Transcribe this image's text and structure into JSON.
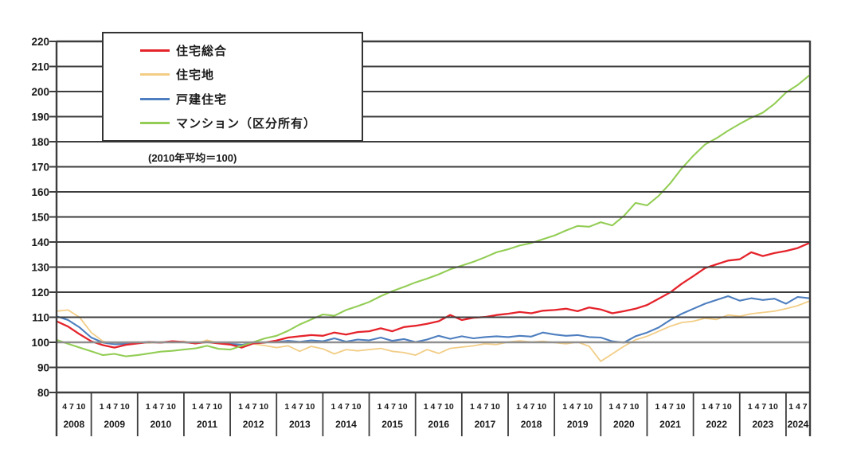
{
  "note": "(2010年平均＝100)",
  "legend": {
    "items": [
      {
        "id": "jutaku-sogo",
        "label": "住宅総合",
        "color": "#e5232b"
      },
      {
        "id": "jutakuchi",
        "label": "住宅地",
        "color": "#f2cd86"
      },
      {
        "id": "kodate",
        "label": "戸建住宅",
        "color": "#4d7ebf"
      },
      {
        "id": "mansion",
        "label": "マンション（区分所有）",
        "color": "#93cd55"
      }
    ]
  },
  "y_axis": {
    "min": 80,
    "max": 220,
    "step": 10,
    "tick_labels": [
      "220",
      "210",
      "200",
      "190",
      "180",
      "170",
      "160",
      "150",
      "140",
      "130",
      "120",
      "110",
      "100",
      "90",
      "80"
    ]
  },
  "x_axis": {
    "years": [
      {
        "year": "2008",
        "months": "4 7 10"
      },
      {
        "year": "2009",
        "months": "1 4 7 10"
      },
      {
        "year": "2010",
        "months": "1 4 7 10"
      },
      {
        "year": "2011",
        "months": "1 4 7 10"
      },
      {
        "year": "2012",
        "months": "1 4 7 10"
      },
      {
        "year": "2013",
        "months": "1 4 7 10"
      },
      {
        "year": "2014",
        "months": "1 4 7 10"
      },
      {
        "year": "2015",
        "months": "1 4 7 10"
      },
      {
        "year": "2016",
        "months": "1 4 7 10"
      },
      {
        "year": "2017",
        "months": "1 4 7 10"
      },
      {
        "year": "2018",
        "months": "1 4 7 10"
      },
      {
        "year": "2019",
        "months": "1 4 7 10"
      },
      {
        "year": "2020",
        "months": "1 4 7 10"
      },
      {
        "year": "2021",
        "months": "1 4 7 10"
      },
      {
        "year": "2022",
        "months": "1 4 7 10"
      },
      {
        "year": "2023",
        "months": "1 4 7 10"
      },
      {
        "year": "2024",
        "months": "1 4 7"
      }
    ]
  },
  "chart_data": {
    "type": "line",
    "title": "",
    "xlabel": "",
    "ylabel": "",
    "ylim": [
      80,
      220
    ],
    "grid": true,
    "baseline": 100,
    "legend_position": "top-left box",
    "x_start": "2008-04",
    "x_end": "2024-07",
    "interval_months": 3,
    "colors": {
      "gridline": "#3d3d3d",
      "baseline_100": "#8f8f8f",
      "frame": "#3d3d3d"
    },
    "series": [
      {
        "name": "住宅総合",
        "color": "#e5232b",
        "values": [
          108.4,
          106.3,
          103.2,
          100.4,
          98.9,
          97.9,
          99.0,
          99.6,
          100.1,
          99.9,
          100.4,
          100.1,
          99.6,
          100.1,
          99.6,
          99.1,
          97.9,
          99.6,
          99.9,
          100.7,
          101.9,
          102.4,
          102.9,
          102.6,
          103.9,
          103.1,
          104.1,
          104.4,
          105.6,
          104.4,
          106.1,
          106.6,
          107.4,
          108.4,
          110.9,
          108.9,
          109.8,
          110.1,
          110.9,
          111.4,
          112.1,
          111.6,
          112.6,
          112.9,
          113.4,
          112.4,
          113.9,
          113.1,
          111.6,
          112.4,
          113.4,
          114.9,
          117.4,
          119.9,
          123.4,
          126.4,
          129.6,
          131.1,
          132.6,
          133.1,
          135.9,
          134.4,
          135.6,
          136.4,
          137.6,
          139.6
        ]
      },
      {
        "name": "住宅地",
        "color": "#f2cd86",
        "values": [
          112.4,
          112.9,
          109.9,
          103.9,
          100.4,
          99.4,
          99.9,
          100.1,
          99.7,
          100.2,
          99.9,
          100.4,
          99.4,
          100.9,
          99.7,
          99.1,
          98.4,
          99.4,
          98.7,
          97.9,
          98.6,
          96.4,
          98.4,
          97.4,
          95.4,
          97.1,
          96.6,
          97.1,
          97.6,
          96.4,
          95.9,
          94.9,
          97.1,
          95.6,
          97.6,
          98.1,
          98.6,
          99.4,
          99.1,
          100.1,
          100.6,
          100.1,
          100.4,
          99.9,
          99.4,
          100.1,
          98.4,
          92.4,
          95.4,
          98.4,
          101.0,
          102.4,
          104.4,
          106.4,
          107.9,
          108.4,
          109.6,
          109.1,
          110.9,
          110.4,
          111.4,
          111.9,
          112.4,
          113.4,
          114.6,
          116.4
        ]
      },
      {
        "name": "戸建住宅",
        "color": "#4d7ebf",
        "values": [
          110.4,
          108.9,
          105.9,
          101.9,
          99.9,
          99.2,
          99.4,
          99.8,
          100.2,
          99.9,
          100.3,
          100.0,
          99.7,
          100.2,
          99.7,
          99.4,
          99.0,
          99.8,
          100.0,
          100.1,
          100.6,
          100.2,
          100.8,
          100.4,
          101.6,
          100.3,
          101.1,
          100.8,
          101.9,
          100.6,
          101.3,
          100.1,
          101.1,
          102.6,
          101.4,
          102.4,
          101.6,
          102.1,
          102.4,
          102.1,
          102.6,
          102.3,
          103.9,
          103.1,
          102.6,
          102.9,
          102.1,
          101.9,
          100.4,
          99.9,
          102.4,
          103.9,
          105.9,
          108.9,
          111.4,
          113.4,
          115.4,
          116.9,
          118.4,
          116.6,
          117.6,
          116.9,
          117.4,
          115.4,
          118.1,
          117.6
        ]
      },
      {
        "name": "マンション（区分所有）",
        "color": "#93cd55",
        "values": [
          101.0,
          99.4,
          97.9,
          96.4,
          94.9,
          95.4,
          94.4,
          94.9,
          95.6,
          96.3,
          96.6,
          97.1,
          97.6,
          98.6,
          97.4,
          97.1,
          98.6,
          100.1,
          101.6,
          102.6,
          104.6,
          107.1,
          109.1,
          111.1,
          110.6,
          112.9,
          114.4,
          116.1,
          118.4,
          120.4,
          122.1,
          123.9,
          125.4,
          127.1,
          129.1,
          130.6,
          132.1,
          133.9,
          135.9,
          137.1,
          138.6,
          139.6,
          141.1,
          142.6,
          144.6,
          146.4,
          146.1,
          147.9,
          146.6,
          150.4,
          155.6,
          154.6,
          158.4,
          163.4,
          169.4,
          174.4,
          178.9,
          181.4,
          184.4,
          187.1,
          189.6,
          191.6,
          195.1,
          199.6,
          202.6,
          206.4
        ]
      }
    ]
  }
}
